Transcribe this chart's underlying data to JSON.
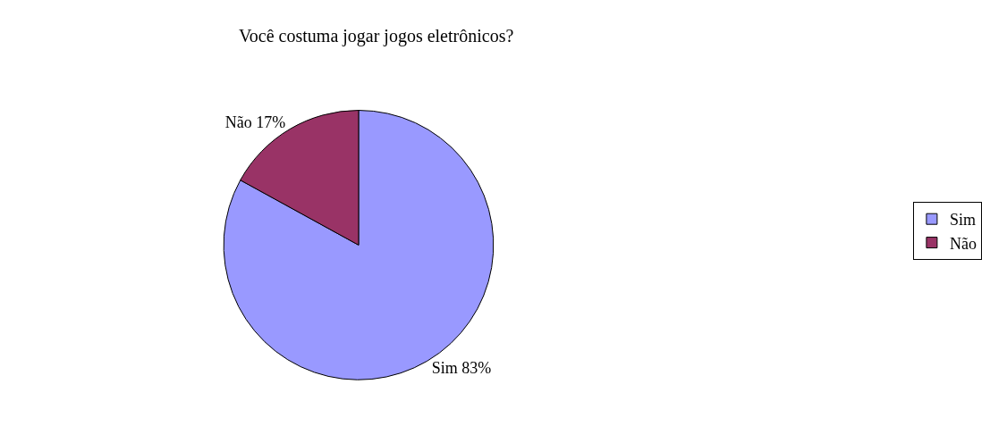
{
  "chart_data": {
    "type": "pie",
    "title": "Você costuma jogar jogos eletrônicos?",
    "categories": [
      "Sim",
      "Não"
    ],
    "values": [
      83,
      17
    ],
    "colors": [
      "#9999ff",
      "#993366"
    ],
    "value_labels": [
      "Sim 83%",
      "Não 17%"
    ],
    "legend": "right"
  }
}
